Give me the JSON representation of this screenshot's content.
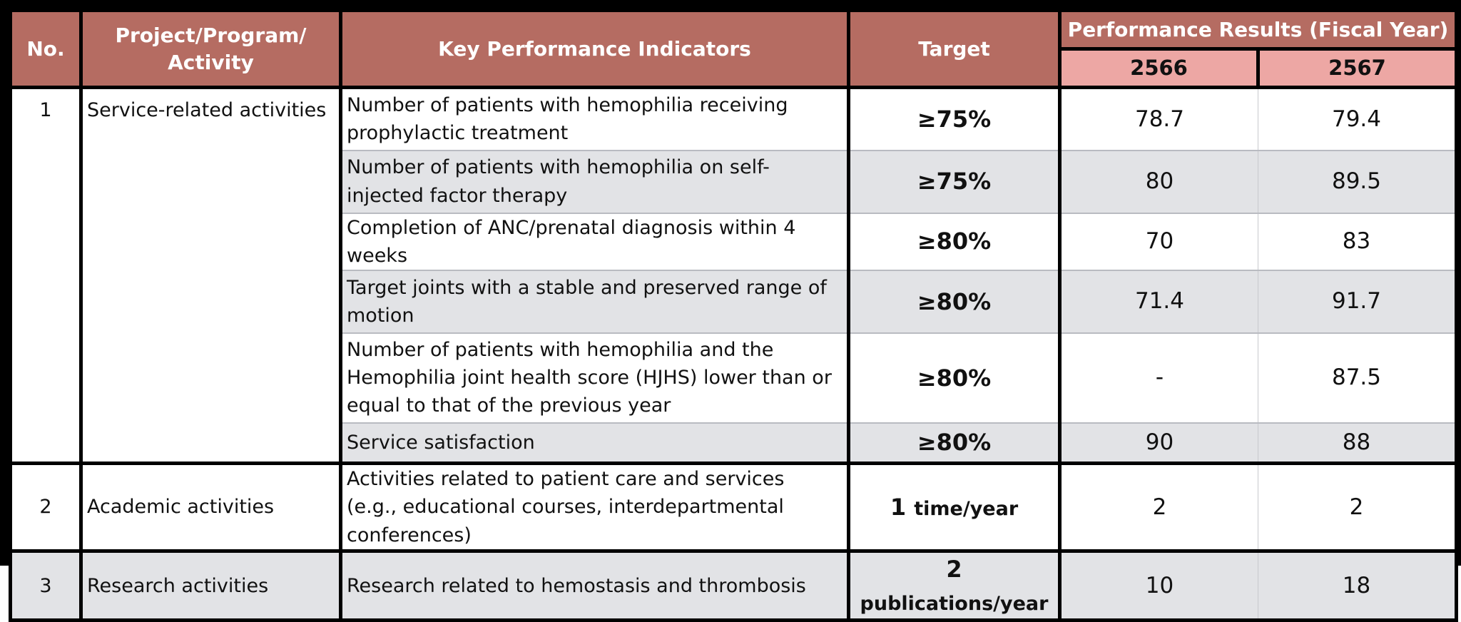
{
  "header": {
    "no": "No.",
    "project": "Project/Program/ Activity",
    "kpi": "Key Performance Indicators",
    "target": "Target",
    "performance": "Performance Results (Fiscal Year)",
    "year1": "2566",
    "year2": "2567"
  },
  "groups": [
    {
      "no": "1",
      "project": "Service-related activities",
      "rows": [
        {
          "kpi": "Number of patients with hemophilia receiving prophylactic treatment",
          "target": "≥75%",
          "y2566": "78.7",
          "y2567": "79.4"
        },
        {
          "kpi": "Number of patients with hemophilia on self-injected factor therapy",
          "target": "≥75%",
          "y2566": "80",
          "y2567": "89.5"
        },
        {
          "kpi": "Completion of ANC/prenatal diagnosis within 4 weeks",
          "target": "≥80%",
          "y2566": "70",
          "y2567": "83"
        },
        {
          "kpi": "Target joints with a stable and preserved range of motion",
          "target": "≥80%",
          "y2566": "71.4",
          "y2567": "91.7"
        },
        {
          "kpi": "Number of patients with hemophilia and the Hemophilia joint health score (HJHS) lower than or equal to that of the previous year",
          "target": "≥80%",
          "y2566": "-",
          "y2567": "87.5"
        },
        {
          "kpi": "Service satisfaction",
          "target": "≥80%",
          "y2566": "90",
          "y2567": "88"
        }
      ]
    },
    {
      "no": "2",
      "project": "Academic activities",
      "rows": [
        {
          "kpi": "Activities related to patient care and services (e.g., educational courses, interdepartmental conferences)",
          "target_num": "1",
          "target_unit": "time/year",
          "y2566": "2",
          "y2567": "2"
        }
      ]
    },
    {
      "no": "3",
      "project": "Research activities",
      "rows": [
        {
          "kpi": "Research related to hemostasis and thrombosis",
          "target_num": "2",
          "target_unit": "publications/year",
          "y2566": "10",
          "y2567": "18"
        }
      ]
    }
  ]
}
